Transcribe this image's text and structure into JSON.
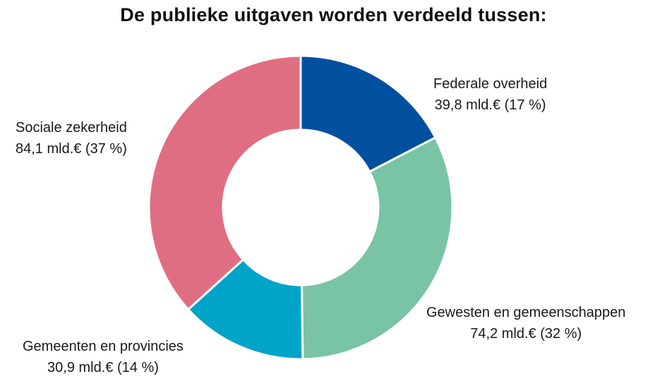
{
  "chart_data": {
    "type": "pie",
    "donut": true,
    "title": "De publieke uitgaven worden verdeeld tussen:",
    "unit": "mld.€",
    "slices": [
      {
        "name": "Federale overheid",
        "value": 39.8,
        "percent": 17,
        "value_label": "39,8 mld.€ (17 %)",
        "color": "#0050A0"
      },
      {
        "name": "Gewesten en gemeenschappen",
        "value": 74.2,
        "percent": 32,
        "value_label": "74,2 mld.€ (32 %)",
        "color": "#78C4A5"
      },
      {
        "name": "Gemeenten en provincies",
        "value": 30.9,
        "percent": 14,
        "value_label": "30,9 mld.€ (14 %)",
        "color": "#00A4C8"
      },
      {
        "name": "Sociale zekerheid",
        "value": 84.1,
        "percent": 37,
        "value_label": "84,1 mld.€ (37 %)",
        "color": "#E06E82"
      }
    ]
  }
}
